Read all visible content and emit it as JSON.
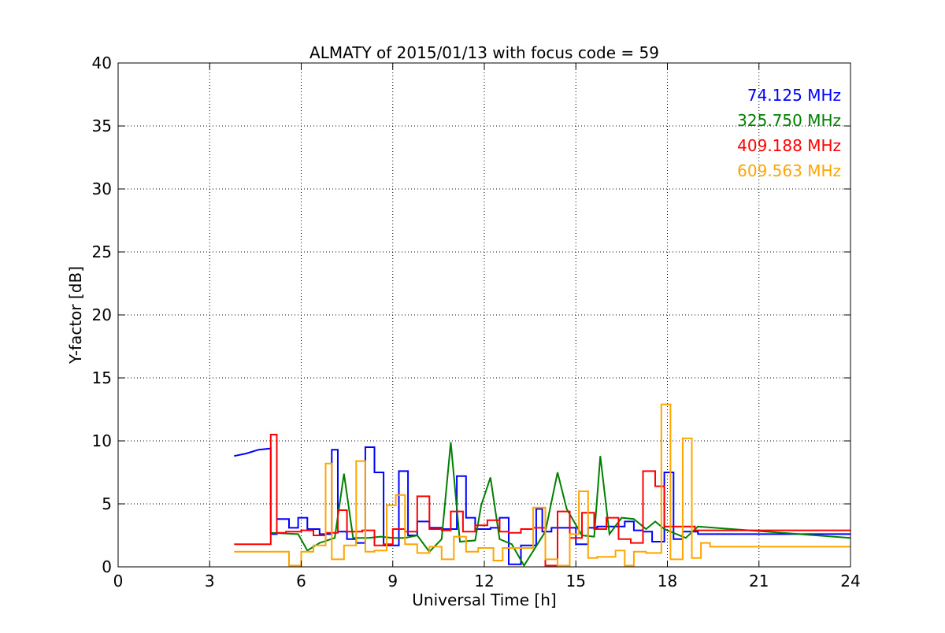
{
  "chart_data": {
    "type": "line",
    "title": "ALMATY of 2015/01/13 with focus code = 59",
    "xlabel": "Universal Time [h]",
    "ylabel": "Y-factor [dB]",
    "xlim": [
      0,
      24
    ],
    "ylim": [
      0,
      40
    ],
    "xticks": [
      0,
      3,
      6,
      9,
      12,
      15,
      18,
      21,
      24
    ],
    "yticks": [
      0,
      5,
      10,
      15,
      20,
      25,
      30,
      35,
      40
    ],
    "grid": true,
    "legend_placement": "top-right",
    "series": [
      {
        "name": "74.125 MHz",
        "color": "#0000ff",
        "x": [
          3.8,
          4.2,
          4.6,
          5.0,
          5.0,
          5.2,
          5.2,
          5.6,
          5.6,
          5.9,
          5.9,
          6.2,
          6.2,
          6.6,
          6.6,
          7.0,
          7.0,
          7.2,
          7.2,
          7.5,
          7.5,
          7.8,
          7.8,
          8.1,
          8.1,
          8.4,
          8.4,
          8.7,
          8.7,
          9.2,
          9.2,
          9.5,
          9.5,
          9.8,
          9.8,
          10.2,
          10.2,
          10.6,
          10.6,
          11.1,
          11.1,
          11.4,
          11.4,
          11.7,
          11.7,
          12.2,
          12.2,
          12.5,
          12.5,
          12.8,
          12.8,
          13.2,
          13.2,
          13.7,
          13.7,
          13.9,
          13.9,
          14.2,
          14.2,
          14.7,
          14.7,
          15.0,
          15.0,
          15.4,
          15.4,
          15.7,
          15.7,
          16.6,
          16.6,
          16.9,
          16.9,
          17.2,
          17.2,
          17.5,
          17.5,
          17.9,
          17.9,
          18.2,
          18.2,
          18.5,
          18.5,
          19.0,
          19.0,
          19.4,
          19.4,
          24.0
        ],
        "y": [
          8.8,
          9.0,
          9.3,
          9.4,
          2.6,
          2.6,
          3.8,
          3.8,
          3.1,
          3.1,
          3.9,
          3.9,
          3.0,
          3.0,
          2.6,
          2.6,
          9.3,
          9.3,
          2.8,
          2.8,
          2.2,
          2.2,
          1.9,
          1.9,
          9.5,
          9.5,
          7.5,
          7.5,
          1.7,
          1.7,
          7.6,
          7.6,
          2.5,
          2.5,
          3.6,
          3.6,
          3.1,
          3.1,
          3.0,
          3.0,
          7.2,
          7.2,
          3.9,
          3.9,
          3.0,
          3.0,
          3.1,
          3.1,
          3.9,
          3.9,
          0.2,
          0.2,
          1.7,
          1.7,
          4.6,
          4.6,
          2.8,
          2.8,
          3.1,
          3.1,
          3.1,
          3.1,
          1.8,
          1.8,
          3.1,
          3.1,
          3.2,
          3.2,
          3.6,
          3.6,
          2.9,
          2.9,
          2.8,
          2.8,
          2.0,
          2.0,
          7.5,
          7.5,
          2.2,
          2.2,
          2.8,
          2.8,
          2.6,
          2.6,
          2.6,
          2.6
        ]
      },
      {
        "name": "325.750 MHz",
        "color": "#008000",
        "x": [
          5.0,
          5.0,
          5.9,
          5.9,
          6.2,
          6.2,
          6.6,
          6.6,
          7.1,
          7.1,
          7.4,
          7.4,
          7.7,
          7.7,
          8.2,
          8.2,
          8.6,
          8.6,
          9.0,
          9.0,
          9.4,
          9.4,
          9.8,
          9.8,
          10.2,
          10.2,
          10.6,
          10.6,
          10.9,
          10.9,
          11.2,
          11.2,
          11.7,
          11.7,
          11.9,
          11.9,
          12.2,
          12.2,
          12.5,
          12.5,
          12.9,
          12.9,
          13.3,
          13.3,
          14.0,
          14.0,
          14.4,
          14.4,
          14.7,
          14.7,
          15.2,
          15.2,
          15.6,
          15.6,
          15.8,
          15.8,
          16.1,
          16.1,
          16.5,
          16.5,
          16.9,
          16.9,
          17.3,
          17.3,
          17.6,
          17.6,
          17.9,
          17.9,
          18.6,
          18.6,
          19.0,
          19.0,
          24.0
        ],
        "y": [
          2.7,
          2.7,
          2.6,
          2.6,
          1.3,
          1.3,
          1.9,
          1.9,
          2.3,
          2.3,
          7.4,
          7.4,
          2.3,
          2.3,
          2.3,
          2.3,
          2.4,
          2.4,
          2.3,
          2.3,
          2.3,
          2.3,
          2.5,
          2.5,
          1.2,
          1.2,
          2.2,
          2.2,
          9.9,
          9.9,
          2.0,
          2.0,
          2.1,
          2.1,
          4.9,
          4.9,
          7.1,
          7.1,
          2.2,
          2.2,
          1.8,
          1.8,
          0.1,
          0.1,
          2.8,
          2.8,
          7.5,
          7.5,
          4.6,
          4.6,
          2.5,
          2.5,
          2.4,
          2.4,
          8.8,
          8.8,
          2.6,
          2.6,
          3.9,
          3.9,
          3.8,
          3.8,
          3.0,
          3.0,
          3.6,
          3.6,
          3.0,
          3.0,
          2.3,
          2.3,
          3.2,
          3.2,
          2.3
        ]
      },
      {
        "name": "409.188 MHz",
        "color": "#ff0000",
        "x": [
          3.8,
          5.0,
          5.0,
          5.2,
          5.2,
          5.5,
          5.5,
          6.0,
          6.0,
          6.4,
          6.4,
          6.8,
          6.8,
          7.2,
          7.2,
          7.5,
          7.5,
          8.0,
          8.0,
          8.4,
          8.4,
          8.7,
          8.7,
          9.0,
          9.0,
          9.4,
          9.4,
          9.8,
          9.8,
          10.2,
          10.2,
          10.6,
          10.6,
          10.9,
          10.9,
          11.3,
          11.3,
          11.7,
          11.7,
          12.1,
          12.1,
          12.5,
          12.5,
          12.8,
          12.8,
          13.2,
          13.2,
          13.6,
          13.6,
          14.0,
          14.0,
          14.4,
          14.4,
          14.8,
          14.8,
          15.2,
          15.2,
          15.6,
          15.6,
          16.0,
          16.0,
          16.4,
          16.4,
          16.8,
          16.8,
          17.2,
          17.2,
          17.6,
          17.6,
          17.9,
          17.9,
          18.3,
          18.3,
          18.9,
          18.9,
          24.0
        ],
        "y": [
          1.8,
          1.8,
          10.5,
          10.5,
          2.7,
          2.7,
          2.8,
          2.8,
          2.9,
          2.9,
          2.5,
          2.5,
          2.7,
          2.7,
          4.5,
          4.5,
          2.8,
          2.8,
          2.9,
          2.9,
          1.7,
          1.7,
          1.8,
          1.8,
          3.0,
          3.0,
          2.8,
          2.8,
          5.6,
          5.6,
          3.0,
          3.0,
          2.9,
          2.9,
          4.4,
          4.4,
          2.8,
          2.8,
          3.3,
          3.3,
          3.7,
          3.7,
          2.8,
          2.8,
          2.7,
          2.7,
          3.0,
          3.0,
          3.1,
          3.1,
          0.1,
          0.1,
          4.4,
          4.4,
          2.3,
          2.3,
          4.3,
          4.3,
          3.0,
          3.0,
          3.9,
          3.9,
          2.2,
          2.2,
          1.9,
          1.9,
          7.6,
          7.6,
          6.4,
          6.4,
          3.2,
          3.2,
          3.2,
          3.2,
          2.9,
          2.9
        ]
      },
      {
        "name": "609.563 MHz",
        "color": "#ffa500",
        "x": [
          3.8,
          5.6,
          5.6,
          6.0,
          6.0,
          6.4,
          6.4,
          6.8,
          6.8,
          7.0,
          7.0,
          7.4,
          7.4,
          7.8,
          7.8,
          8.1,
          8.1,
          8.4,
          8.4,
          8.8,
          8.8,
          9.1,
          9.1,
          9.4,
          9.4,
          9.8,
          9.8,
          10.2,
          10.2,
          10.6,
          10.6,
          11.0,
          11.0,
          11.4,
          11.4,
          11.8,
          11.8,
          12.3,
          12.3,
          12.6,
          12.6,
          13.2,
          13.2,
          13.6,
          13.6,
          14.0,
          14.0,
          14.4,
          14.4,
          14.8,
          14.8,
          15.1,
          15.1,
          15.4,
          15.4,
          15.7,
          15.7,
          16.3,
          16.3,
          16.6,
          16.6,
          16.9,
          16.9,
          17.3,
          17.3,
          17.8,
          17.8,
          18.1,
          18.1,
          18.5,
          18.5,
          18.8,
          18.8,
          19.1,
          19.1,
          19.4,
          19.4,
          24.0
        ],
        "y": [
          1.2,
          1.2,
          0.1,
          0.1,
          1.2,
          1.2,
          1.7,
          1.7,
          8.2,
          8.2,
          0.6,
          0.6,
          1.7,
          1.7,
          8.4,
          8.4,
          1.2,
          1.2,
          1.3,
          1.3,
          4.9,
          4.9,
          5.7,
          5.7,
          1.8,
          1.8,
          1.1,
          1.1,
          1.6,
          1.6,
          0.6,
          0.6,
          2.4,
          2.4,
          1.2,
          1.2,
          1.5,
          1.5,
          0.5,
          0.5,
          1.5,
          1.5,
          1.5,
          1.5,
          4.7,
          4.7,
          0.6,
          0.6,
          0.1,
          0.1,
          2.6,
          2.6,
          6.0,
          6.0,
          0.7,
          0.7,
          0.8,
          0.8,
          1.3,
          1.3,
          0.1,
          0.1,
          1.2,
          1.2,
          1.1,
          1.1,
          12.9,
          12.9,
          0.6,
          0.6,
          10.2,
          10.2,
          0.7,
          0.7,
          1.9,
          1.9,
          1.6,
          1.6
        ]
      }
    ]
  }
}
